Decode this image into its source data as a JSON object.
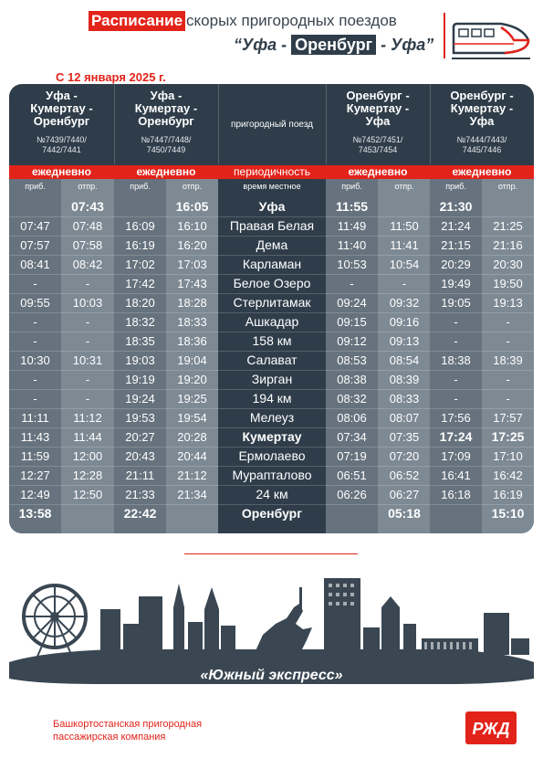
{
  "header": {
    "title_highlight": "Расписание",
    "title_rest": " скорых пригородных поездов",
    "route_left": "“Уфа -",
    "route_mid": "Оренбург",
    "route_right": "- Уфа”",
    "date": "С 12 января 2025 г."
  },
  "table": {
    "col_titles": [
      [
        "Уфа -",
        "Кумертау -",
        "Оренбург"
      ],
      [
        "Уфа -",
        "Кумертау -",
        "Оренбург"
      ],
      [
        "Оренбург -",
        "Кумертау -",
        "Уфа"
      ],
      [
        "Оренбург -",
        "Кумертау -",
        "Уфа"
      ]
    ],
    "col_numbers": [
      [
        "№7439/7440/",
        "7442/7441"
      ],
      [
        "№7447/7448/",
        "7450/7449"
      ],
      [
        "№7452/7451/",
        "7453/7454"
      ],
      [
        "№7444/7443/",
        "7445/7446"
      ]
    ],
    "mid_header": "пригородный поезд",
    "frequency_label": "периодичность",
    "frequency": [
      "ежедневно",
      "ежедневно",
      "ежедневно",
      "ежедневно"
    ],
    "sub_arr": "приб.",
    "sub_dep": "отпр.",
    "sub_mid": "время местное",
    "rows": [
      {
        "st": "Уфа",
        "b": true,
        "c": [
          "",
          "07:43",
          "",
          "16:05",
          "11:55",
          "",
          "21:30",
          ""
        ]
      },
      {
        "st": "Правая Белая",
        "c": [
          "07:47",
          "07:48",
          "16:09",
          "16:10",
          "11:49",
          "11:50",
          "21:24",
          "21:25"
        ]
      },
      {
        "st": "Дема",
        "c": [
          "07:57",
          "07:58",
          "16:19",
          "16:20",
          "11:40",
          "11:41",
          "21:15",
          "21:16"
        ]
      },
      {
        "st": "Карламан",
        "c": [
          "08:41",
          "08:42",
          "17:02",
          "17:03",
          "10:53",
          "10:54",
          "20:29",
          "20:30"
        ]
      },
      {
        "st": "Белое Озеро",
        "c": [
          "-",
          "-",
          "17:42",
          "17:43",
          "-",
          "-",
          "19:49",
          "19:50"
        ]
      },
      {
        "st": "Стерлитамак",
        "c": [
          "09:55",
          "10:03",
          "18:20",
          "18:28",
          "09:24",
          "09:32",
          "19:05",
          "19:13"
        ]
      },
      {
        "st": "Ашкадар",
        "c": [
          "-",
          "-",
          "18:32",
          "18:33",
          "09:15",
          "09:16",
          "-",
          "-"
        ]
      },
      {
        "st": "158 км",
        "c": [
          "-",
          "-",
          "18:35",
          "18:36",
          "09:12",
          "09:13",
          "-",
          "-"
        ]
      },
      {
        "st": "Салават",
        "c": [
          "10:30",
          "10:31",
          "19:03",
          "19:04",
          "08:53",
          "08:54",
          "18:38",
          "18:39"
        ]
      },
      {
        "st": "Зирган",
        "c": [
          "-",
          "-",
          "19:19",
          "19:20",
          "08:38",
          "08:39",
          "-",
          "-"
        ]
      },
      {
        "st": "194 км",
        "c": [
          "-",
          "-",
          "19:24",
          "19:25",
          "08:32",
          "08:33",
          "-",
          "-"
        ]
      },
      {
        "st": "Мелеуз",
        "c": [
          "11:11",
          "11:12",
          "19:53",
          "19:54",
          "08:06",
          "08:07",
          "17:56",
          "17:57"
        ]
      },
      {
        "st": "Кумертау",
        "b": true,
        "c": [
          "11:43",
          "11:44",
          "20:27",
          "20:28",
          "07:34",
          "07:35",
          "17:24",
          "17:25"
        ]
      },
      {
        "st": "Ермолаево",
        "c": [
          "11:59",
          "12:00",
          "20:43",
          "20:44",
          "07:19",
          "07:20",
          "17:09",
          "17:10"
        ]
      },
      {
        "st": "Мурапталово",
        "c": [
          "12:27",
          "12:28",
          "21:11",
          "21:12",
          "06:51",
          "06:52",
          "16:41",
          "16:42"
        ]
      },
      {
        "st": "24 км",
        "c": [
          "12:49",
          "12:50",
          "21:33",
          "21:34",
          "06:26",
          "06:27",
          "16:18",
          "16:19"
        ]
      },
      {
        "st": "Оренбург",
        "b": true,
        "c": [
          "13:58",
          "",
          "22:42",
          "",
          "",
          "05:18",
          "",
          "15:10"
        ]
      }
    ],
    "bold_cells": [
      [
        0,
        1
      ],
      [
        0,
        3
      ],
      [
        0,
        4
      ],
      [
        0,
        6
      ],
      [
        12,
        6
      ],
      [
        12,
        7
      ],
      [
        16,
        0
      ],
      [
        16,
        2
      ],
      [
        16,
        5
      ],
      [
        16,
        7
      ]
    ]
  },
  "slogan": "«Южный экспресс»",
  "company": [
    "Башкортостанская пригородная",
    "пассажирская компания"
  ],
  "logo_text": "РЖД",
  "colors": {
    "brand_red": "#e2231a",
    "dark": "#2f3d4a",
    "light_col": "#7d8993"
  }
}
